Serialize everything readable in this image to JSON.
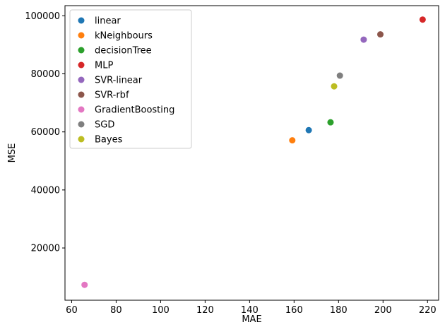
{
  "chart_data": {
    "type": "scatter",
    "title": "",
    "xlabel": "MAE",
    "ylabel": "MSE",
    "xlim": [
      57,
      225
    ],
    "ylim": [
      2000,
      103500
    ],
    "xticks": [
      60,
      80,
      100,
      120,
      140,
      160,
      180,
      200,
      220
    ],
    "yticks": [
      20000,
      40000,
      60000,
      80000,
      100000
    ],
    "grid": false,
    "legend_position": "top-left",
    "series": [
      {
        "name": "linear",
        "color": "#1f77b4",
        "points": [
          {
            "x": 166.6,
            "y": 60600
          }
        ]
      },
      {
        "name": "kNeighbours",
        "color": "#ff7f0e",
        "points": [
          {
            "x": 159.2,
            "y": 57100
          }
        ]
      },
      {
        "name": "decisionTree",
        "color": "#2ca02c",
        "points": [
          {
            "x": 176.4,
            "y": 63300
          }
        ]
      },
      {
        "name": "MLP",
        "color": "#d62728",
        "points": [
          {
            "x": 217.8,
            "y": 98700
          }
        ]
      },
      {
        "name": "SVR-linear",
        "color": "#9467bd",
        "points": [
          {
            "x": 191.3,
            "y": 91800
          }
        ]
      },
      {
        "name": "SVR-rbf",
        "color": "#8c564b",
        "points": [
          {
            "x": 198.8,
            "y": 93600
          }
        ]
      },
      {
        "name": "GradientBoosting",
        "color": "#e377c2",
        "points": [
          {
            "x": 65.8,
            "y": 7300
          }
        ]
      },
      {
        "name": "SGD",
        "color": "#7f7f7f",
        "points": [
          {
            "x": 180.6,
            "y": 79400
          }
        ]
      },
      {
        "name": "Bayes",
        "color": "#bcbd22",
        "points": [
          {
            "x": 178.0,
            "y": 75700
          }
        ]
      }
    ]
  }
}
